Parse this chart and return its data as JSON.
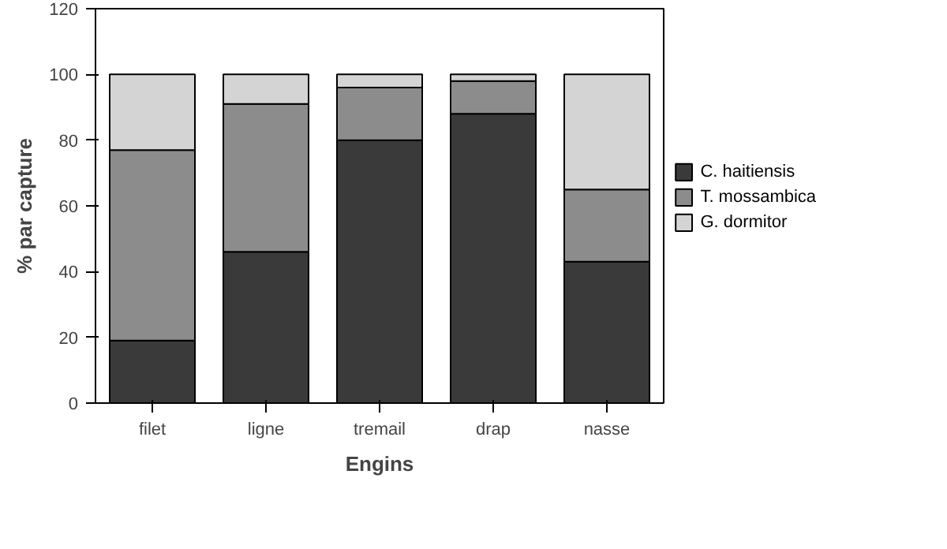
{
  "chart_data": {
    "type": "bar",
    "stacked": true,
    "xlabel": "Engins",
    "ylabel": "% par capture",
    "categories": [
      "filet",
      "ligne",
      "tremail",
      "drap",
      "nasse"
    ],
    "series": [
      {
        "name": "C. haitiensis",
        "color": "#3a3a3a",
        "values": [
          19,
          46,
          80,
          88,
          43
        ]
      },
      {
        "name": "T. mossambica",
        "color": "#8c8c8c",
        "values": [
          58,
          45,
          16,
          10,
          22
        ]
      },
      {
        "name": "G. dormitor",
        "color": "#d4d4d4",
        "values": [
          23,
          9,
          4,
          2,
          35
        ]
      }
    ],
    "ylim": [
      0,
      120
    ],
    "yticks": [
      0,
      20,
      40,
      60,
      80,
      100,
      120
    ],
    "grid": false,
    "legend": "right"
  }
}
